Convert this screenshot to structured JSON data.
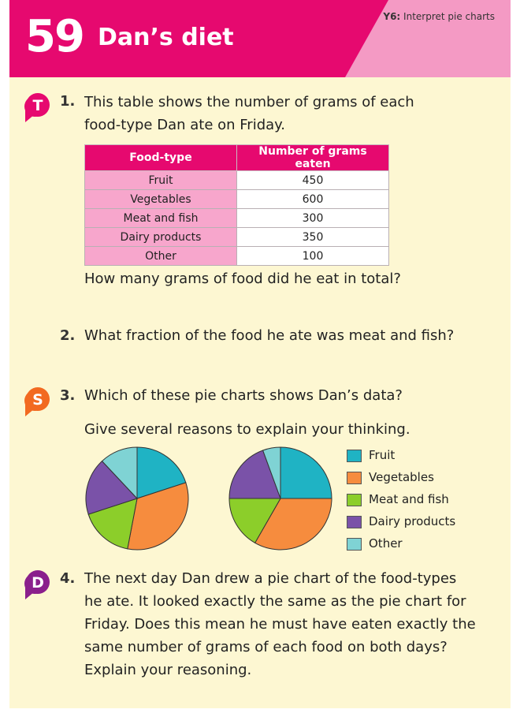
{
  "header": {
    "number": "59",
    "title": "Dan’s diet",
    "topic_prefix": "Y6:",
    "topic": "Interpret pie charts"
  },
  "colors": {
    "magenta": "#e6096f",
    "pink": "#f49ac4",
    "page": "#fdf7d2"
  },
  "questions": [
    {
      "badge": "T",
      "badge_color": "#e6096f",
      "number": "1.",
      "lines": [
        "This table shows the number of grams of each",
        "food-type Dan ate on Friday."
      ],
      "followup": "How many grams of food did he eat in total?"
    },
    {
      "number": "2.",
      "lines": [
        "What fraction of the food he ate was meat and fish?"
      ]
    },
    {
      "badge": "S",
      "badge_color": "#f26a21",
      "number": "3.",
      "lines": [
        "Which of these pie charts shows Dan’s data?"
      ],
      "followup": "Give several reasons to explain your thinking."
    },
    {
      "badge": "D",
      "badge_color": "#8a1f8c",
      "number": "4.",
      "lines": [
        "The next day Dan drew a pie chart of the food-types",
        "he ate. It looked exactly the same as the pie chart for",
        "Friday. Does this mean he must have eaten exactly the",
        "same number of grams of each food on both days?",
        "Explain your reasoning."
      ]
    }
  ],
  "table": {
    "headers": [
      "Food-type",
      "Number of grams eaten"
    ],
    "rows": [
      [
        "Fruit",
        "450"
      ],
      [
        "Vegetables",
        "600"
      ],
      [
        "Meat and fish",
        "300"
      ],
      [
        "Dairy products",
        "350"
      ],
      [
        "Other",
        "100"
      ]
    ]
  },
  "chart_data": [
    {
      "type": "pie",
      "categories": [
        "Fruit",
        "Vegetables",
        "Meat and fish",
        "Dairy products",
        "Other"
      ],
      "values": [
        20,
        33,
        17,
        18,
        12
      ]
    },
    {
      "type": "pie",
      "categories": [
        "Fruit",
        "Vegetables",
        "Meat and fish",
        "Dairy products",
        "Other"
      ],
      "values": [
        25,
        33.3,
        16.7,
        19.4,
        5.6
      ]
    }
  ],
  "legend": [
    {
      "label": "Fruit",
      "color": "#1fb3c4"
    },
    {
      "label": "Vegetables",
      "color": "#f68c3e"
    },
    {
      "label": "Meat and fish",
      "color": "#8cce2a"
    },
    {
      "label": "Dairy products",
      "color": "#7a52a8"
    },
    {
      "label": "Other",
      "color": "#7fd3d4"
    }
  ]
}
